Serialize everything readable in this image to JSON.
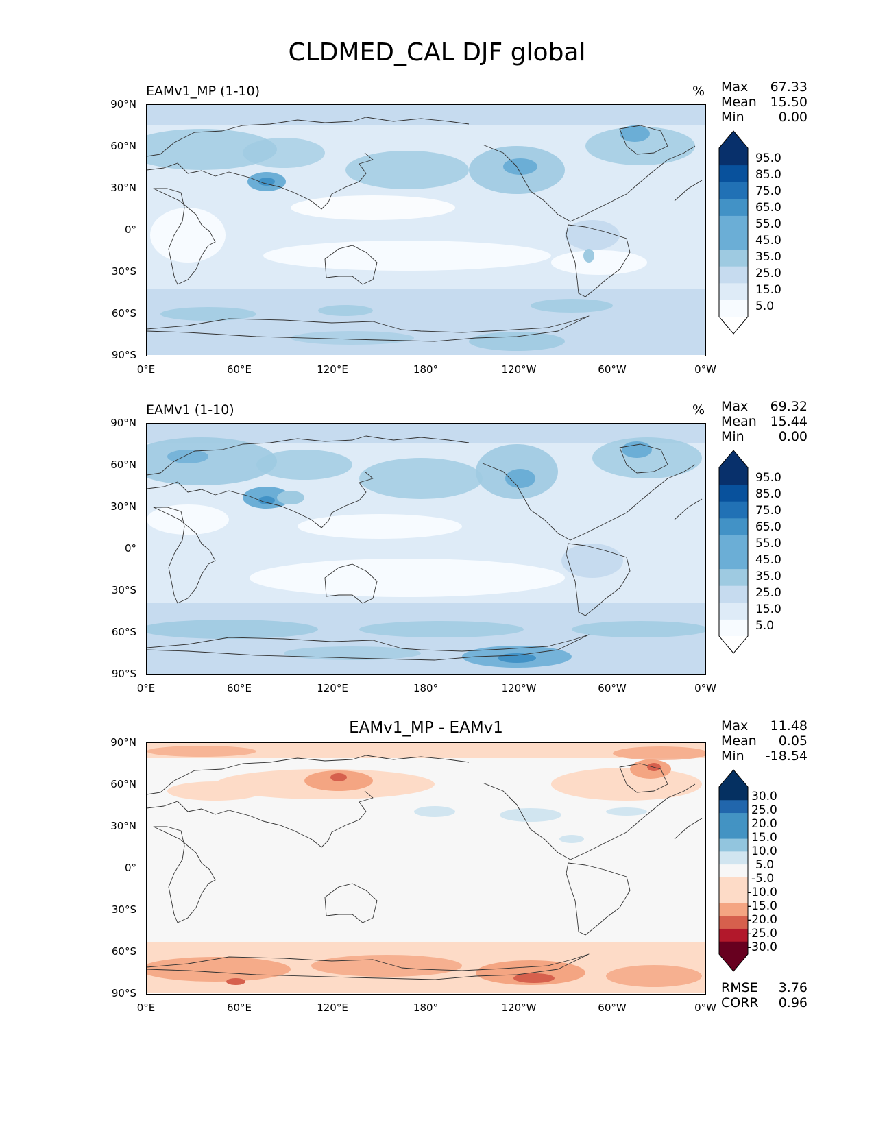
{
  "figure_title": "CLDMED_CAL DJF global",
  "colors": {
    "blues": [
      "#f7fbff",
      "#deebf7",
      "#c6dbef",
      "#9ecae1",
      "#6baed6",
      "#4292c6",
      "#2171b5",
      "#08519c",
      "#08306b"
    ],
    "diff": [
      "#67001f",
      "#b2182b",
      "#d6604d",
      "#f4a582",
      "#fddbc7",
      "#f7f7f7",
      "#d1e5f0",
      "#92c5de",
      "#4393c3",
      "#2166ac",
      "#053061"
    ],
    "land_line": "#333333"
  },
  "x_ticks": [
    "0°E",
    "60°E",
    "120°E",
    "180°",
    "120°W",
    "60°W",
    "0°W"
  ],
  "y_ticks": [
    "90°N",
    "60°N",
    "30°N",
    "0°",
    "30°S",
    "60°S",
    "90°S"
  ],
  "panels": [
    {
      "id": "p1",
      "left_title": "EAMv1_MP (1-10)",
      "units": "%",
      "stats": [
        {
          "label": "Max",
          "value": "67.33"
        },
        {
          "label": "Mean",
          "value": "15.50"
        },
        {
          "label": "Min",
          "value": "0.00"
        }
      ],
      "colorbar": {
        "labels": [
          "95.0",
          "85.0",
          "75.0",
          "65.0",
          "55.0",
          "45.0",
          "35.0",
          "25.0",
          "15.0",
          "5.0"
        ]
      }
    },
    {
      "id": "p2",
      "left_title": "EAMv1 (1-10)",
      "units": "%",
      "stats": [
        {
          "label": "Max",
          "value": "69.32"
        },
        {
          "label": "Mean",
          "value": "15.44"
        },
        {
          "label": "Min",
          "value": "0.00"
        }
      ],
      "colorbar": {
        "labels": [
          "95.0",
          "85.0",
          "75.0",
          "65.0",
          "55.0",
          "45.0",
          "35.0",
          "25.0",
          "15.0",
          "5.0"
        ]
      }
    },
    {
      "id": "p3",
      "center_title": "EAMv1_MP - EAMv1",
      "stats": [
        {
          "label": "Max",
          "value": "11.48"
        },
        {
          "label": "Mean",
          "value": "0.05"
        },
        {
          "label": "Min",
          "value": "-18.54"
        }
      ],
      "colorbar": {
        "labels": [
          "30.0",
          "25.0",
          "20.0",
          "15.0",
          "10.0",
          "5.0",
          "-5.0",
          "-10.0",
          "-15.0",
          "-20.0",
          "-25.0",
          "-30.0"
        ]
      },
      "metrics": [
        {
          "label": "RMSE",
          "value": "3.76"
        },
        {
          "label": "CORR",
          "value": "0.96"
        }
      ]
    }
  ]
}
